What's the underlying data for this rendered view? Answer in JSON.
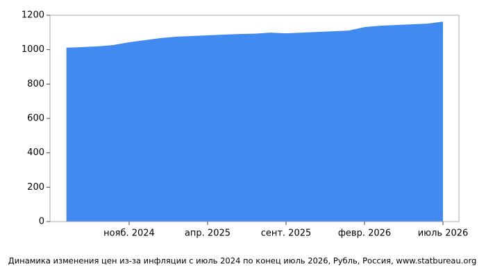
{
  "chart_data": {
    "type": "area",
    "caption": "Динамика изменения цен из-за инфляции с июль 2024 по конец июль 2026, Рубль, Россия, www.statbureau.org",
    "categories": [
      null,
      null,
      null,
      null,
      "нояб. 2024",
      null,
      null,
      null,
      null,
      "апр. 2025",
      null,
      null,
      null,
      null,
      "сент. 2025",
      null,
      null,
      null,
      null,
      "февр. 2026",
      null,
      null,
      null,
      null,
      "июль 2026"
    ],
    "values": [
      1011,
      1015,
      1019,
      1027,
      1043,
      1055,
      1067,
      1075,
      1079,
      1083,
      1087,
      1091,
      1093,
      1099,
      1095,
      1099,
      1103,
      1107,
      1111,
      1131,
      1139,
      1143,
      1147,
      1151,
      1163
    ],
    "color": "#418bf0",
    "ylim": [
      0,
      1200
    ],
    "yticks": [
      0,
      200,
      400,
      600,
      800,
      1000,
      1200
    ],
    "grid": false
  }
}
